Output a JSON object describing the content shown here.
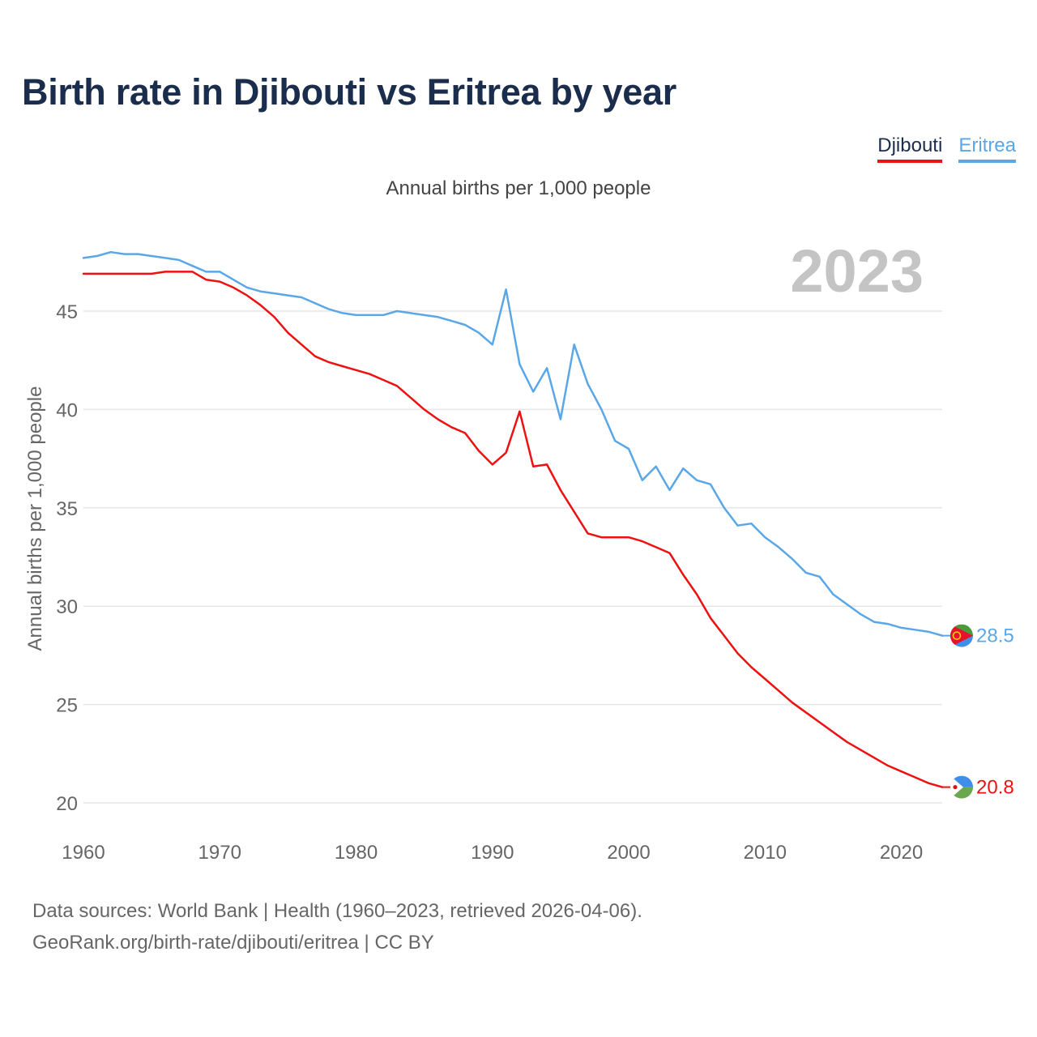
{
  "title": "Birth rate in Djibouti vs Eritrea by year",
  "chart_data": {
    "type": "line",
    "title": "Birth rate in Djibouti vs Eritrea by year",
    "subtitle": "Annual births per 1,000 people",
    "ylabel": "Annual births per 1,000 people",
    "xlabel": "",
    "xlim": [
      1960,
      2023
    ],
    "ylim": [
      20,
      48
    ],
    "x_ticks": [
      1960,
      1970,
      1980,
      1990,
      2000,
      2010,
      2020
    ],
    "y_ticks": [
      20,
      25,
      30,
      35,
      40,
      45
    ],
    "grid": true,
    "legend_position": "top-right",
    "year_label": "2023",
    "series": [
      {
        "name": "Djibouti",
        "color": "#ee1111",
        "end_label": "20.8",
        "flag": "djibouti-flag",
        "x": [
          1960,
          1961,
          1962,
          1963,
          1964,
          1965,
          1966,
          1967,
          1968,
          1969,
          1970,
          1971,
          1972,
          1973,
          1974,
          1975,
          1976,
          1977,
          1978,
          1979,
          1980,
          1981,
          1982,
          1983,
          1984,
          1985,
          1986,
          1987,
          1988,
          1989,
          1990,
          1991,
          1992,
          1993,
          1994,
          1995,
          1996,
          1997,
          1998,
          1999,
          2000,
          2001,
          2002,
          2003,
          2004,
          2005,
          2006,
          2007,
          2008,
          2009,
          2010,
          2011,
          2012,
          2013,
          2014,
          2015,
          2016,
          2017,
          2018,
          2019,
          2020,
          2021,
          2022,
          2023
        ],
        "values": [
          46.9,
          46.9,
          46.9,
          46.9,
          46.9,
          46.9,
          47.0,
          47.0,
          47.0,
          46.6,
          46.5,
          46.2,
          45.8,
          45.3,
          44.7,
          43.9,
          43.3,
          42.7,
          42.4,
          42.2,
          42.0,
          41.8,
          41.5,
          41.2,
          40.6,
          40.0,
          39.5,
          39.1,
          38.8,
          37.9,
          37.2,
          37.8,
          39.9,
          37.1,
          37.2,
          35.9,
          34.8,
          33.7,
          33.5,
          33.5,
          33.5,
          33.3,
          33.0,
          32.7,
          31.6,
          30.6,
          29.4,
          28.5,
          27.6,
          26.9,
          26.3,
          25.7,
          25.1,
          24.6,
          24.1,
          23.6,
          23.1,
          22.7,
          22.3,
          21.9,
          21.6,
          21.3,
          21.0,
          20.8
        ]
      },
      {
        "name": "Eritrea",
        "color": "#5aa7e8",
        "end_label": "28.5",
        "flag": "eritrea-flag",
        "x": [
          1960,
          1961,
          1962,
          1963,
          1964,
          1965,
          1966,
          1967,
          1968,
          1969,
          1970,
          1971,
          1972,
          1973,
          1974,
          1975,
          1976,
          1977,
          1978,
          1979,
          1980,
          1981,
          1982,
          1983,
          1984,
          1985,
          1986,
          1987,
          1988,
          1989,
          1990,
          1991,
          1992,
          1993,
          1994,
          1995,
          1996,
          1997,
          1998,
          1999,
          2000,
          2001,
          2002,
          2003,
          2004,
          2005,
          2006,
          2007,
          2008,
          2009,
          2010,
          2011,
          2012,
          2013,
          2014,
          2015,
          2016,
          2017,
          2018,
          2019,
          2020,
          2021,
          2022,
          2023
        ],
        "values": [
          47.7,
          47.8,
          48.0,
          47.9,
          47.9,
          47.8,
          47.7,
          47.6,
          47.3,
          47.0,
          47.0,
          46.6,
          46.2,
          46.0,
          45.9,
          45.8,
          45.7,
          45.4,
          45.1,
          44.9,
          44.8,
          44.8,
          44.8,
          45.0,
          44.9,
          44.8,
          44.7,
          44.5,
          44.3,
          43.9,
          43.3,
          46.1,
          42.3,
          40.9,
          42.1,
          39.5,
          43.3,
          41.3,
          40.0,
          38.4,
          38.0,
          36.4,
          37.1,
          35.9,
          37.0,
          36.4,
          36.2,
          35.0,
          34.1,
          34.2,
          33.5,
          33.0,
          32.4,
          31.7,
          31.5,
          30.6,
          30.1,
          29.6,
          29.2,
          29.1,
          28.9,
          28.8,
          28.7,
          28.5
        ]
      }
    ]
  },
  "footer": {
    "line1": "Data sources: World Bank | Health (1960–2023, retrieved 2026-04-06).",
    "line2": "GeoRank.org/birth-rate/djibouti/eritrea | CC BY"
  }
}
